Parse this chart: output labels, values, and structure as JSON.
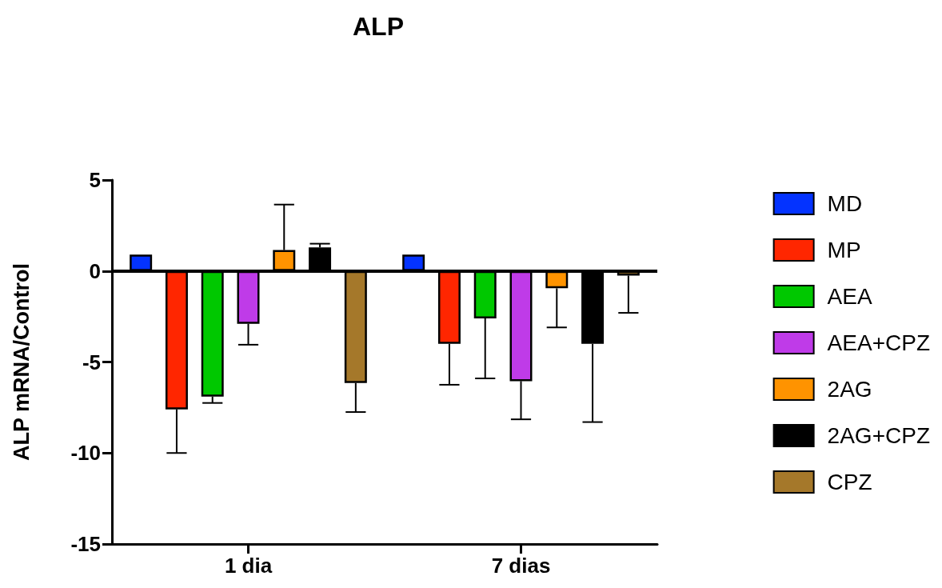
{
  "chart_data": {
    "type": "bar",
    "title": "ALP",
    "ylabel": "ALP mRNA/Control",
    "categories": [
      "1 dia",
      "7 dias"
    ],
    "series": [
      {
        "name": "MD",
        "color": "#0433ff",
        "values": [
          0.9,
          0.9
        ]
      },
      {
        "name": "MP",
        "color": "#ff2600",
        "values": [
          -7.6,
          -4.0
        ],
        "errors": [
          [
            -10.0,
            -7.6
          ],
          [
            -6.25,
            -4.0
          ]
        ]
      },
      {
        "name": "AEA",
        "color": "#00c800",
        "values": [
          -6.9,
          -2.6
        ],
        "errors": [
          [
            -7.25,
            -6.9
          ],
          [
            -5.9,
            -2.6
          ]
        ]
      },
      {
        "name": "AEA+CPZ",
        "color": "#bf3be8",
        "values": [
          -2.9,
          -6.05
        ],
        "errors": [
          [
            -4.05,
            -2.9
          ],
          [
            -8.15,
            -6.05
          ]
        ]
      },
      {
        "name": "2AG",
        "color": "#ff9300",
        "values": [
          1.15,
          -0.95
        ],
        "errors": [
          [
            1.15,
            3.65
          ],
          [
            -3.1,
            -0.95
          ]
        ]
      },
      {
        "name": "2AG+CPZ",
        "color": "#000000",
        "values": [
          1.3,
          -4.0
        ],
        "errors": [
          [
            1.3,
            1.5
          ],
          [
            -8.3,
            -4.0
          ]
        ]
      },
      {
        "name": "CPZ",
        "color": "#a5782a",
        "values": [
          -6.15,
          -0.25
        ],
        "errors": [
          [
            -7.75,
            -6.15
          ],
          [
            -2.3,
            -0.25
          ]
        ]
      }
    ],
    "ylim": [
      -15,
      5
    ],
    "yticks": [
      -15,
      -10,
      -5,
      0,
      5
    ],
    "ref_lines": [
      {
        "axis": "y",
        "value": 0,
        "color": "#000000"
      }
    ],
    "grid": false,
    "legend": "right"
  }
}
